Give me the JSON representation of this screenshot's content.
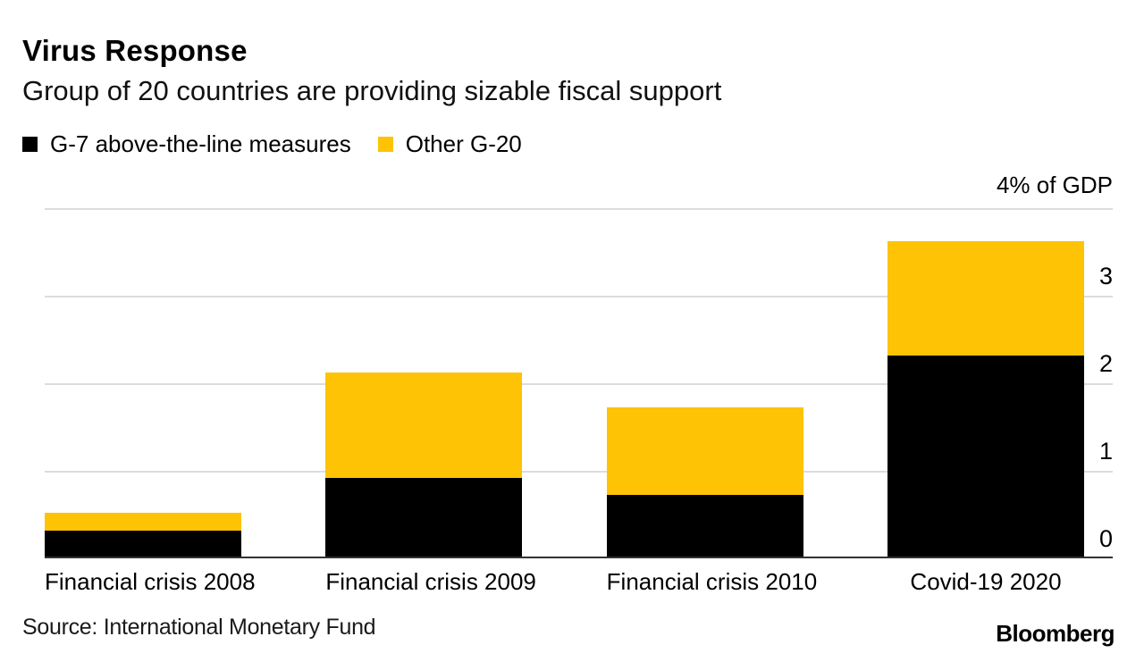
{
  "header": {
    "title": "Virus Response",
    "subtitle": "Group of 20 countries are providing sizable fiscal support"
  },
  "legend": [
    {
      "label": "G-7 above-the-line measures",
      "color": "#000000"
    },
    {
      "label": "Other G-20",
      "color": "#FDC304"
    }
  ],
  "chart_data": {
    "type": "bar",
    "stacked": true,
    "categories": [
      "Financial crisis 2008",
      "Financial crisis 2009",
      "Financial crisis 2010",
      "Covid-19 2020"
    ],
    "series": [
      {
        "name": "G-7 above-the-line measures",
        "color": "#000000",
        "values": [
          0.3,
          0.9,
          0.7,
          2.3
        ]
      },
      {
        "name": "Other G-20",
        "color": "#FDC304",
        "values": [
          0.2,
          1.2,
          1.0,
          1.3
        ]
      }
    ],
    "title": "Virus Response",
    "subtitle": "Group of 20 countries are providing sizable fiscal support",
    "unit_label": "4% of GDP",
    "ylabel": "% of GDP",
    "xlabel": "",
    "y_ticks": [
      0,
      1,
      2,
      3
    ],
    "ylim": [
      0,
      4
    ],
    "grid": "horizontal",
    "legend_position": "top-left",
    "axis_side": "right"
  },
  "colors": {
    "gridline": "#dcdcdc",
    "baseline": "#333333",
    "bar_black": "#000000",
    "bar_yellow": "#FDC304"
  },
  "footer": {
    "source": "Source: International Monetary Fund",
    "brand": "Bloomberg"
  }
}
